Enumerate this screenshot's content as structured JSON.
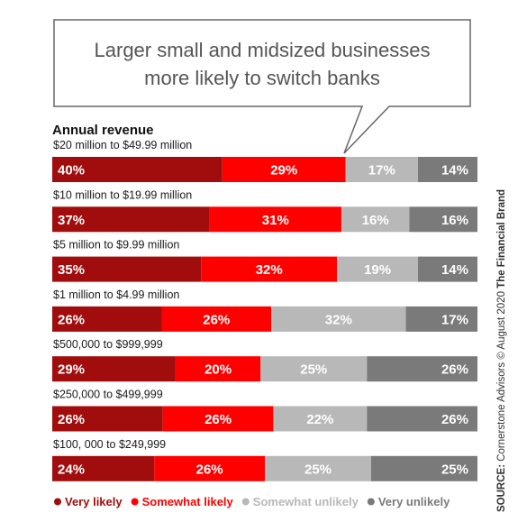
{
  "chart_data": {
    "type": "bar",
    "orientation": "horizontal",
    "stacked": "100%",
    "title": "Larger small and midsized businesses more likely to switch banks",
    "title_lines": [
      "Larger small and midsized businesses",
      "more likely to switch banks"
    ],
    "ylabel": "Annual revenue",
    "categories": [
      "$20 million to $49.99 million",
      "$10 million to $19.99 million",
      "$5 million to $9.99 million",
      "$1 million to $4.99 million",
      "$500,000 to $999,999",
      "$250,000 to $499,999",
      "$100, 000 to $249,999"
    ],
    "series": [
      {
        "name": "Very likely",
        "color": "#a10d0d",
        "values": [
          40,
          37,
          35,
          26,
          29,
          26,
          24
        ]
      },
      {
        "name": "Somewhat likely",
        "color": "#ff0000",
        "values": [
          29,
          31,
          32,
          26,
          20,
          26,
          26
        ]
      },
      {
        "name": "Somewhat unlikely",
        "color": "#b8b8b8",
        "values": [
          17,
          16,
          19,
          32,
          25,
          22,
          25
        ]
      },
      {
        "name": "Very unlikely",
        "color": "#7a7a7a",
        "values": [
          14,
          16,
          14,
          17,
          26,
          26,
          25
        ]
      }
    ],
    "value_suffix": "%",
    "legend_position": "bottom",
    "grid": false
  },
  "source": {
    "prefix": "SOURCE:",
    "text": " Cornerstone Advisors © August 2020 ",
    "brand": "The Financial Brand"
  }
}
